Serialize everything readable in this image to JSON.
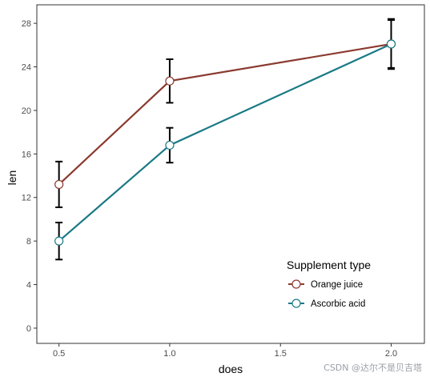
{
  "chart_data": {
    "type": "line",
    "xlabel": "does",
    "ylabel": "len",
    "x_ticks": [
      0.5,
      1.0,
      1.5,
      2.0
    ],
    "x_tick_labels": [
      "0.5",
      "1.0",
      "1.5",
      "2.0"
    ],
    "y_ticks": [
      0,
      4,
      8,
      12,
      16,
      20,
      24,
      28
    ],
    "y_tick_labels": [
      "0",
      "4",
      "8",
      "12",
      "16",
      "20",
      "24",
      "28"
    ],
    "xlim": [
      0.4,
      2.15
    ],
    "ylim": [
      -1.4,
      29.7
    ],
    "grid": false,
    "legend_title": "Supplement type",
    "legend_position": "bottom-right inside",
    "x": [
      0.5,
      1.0,
      2.0
    ],
    "series": [
      {
        "name": "Orange juice",
        "color": "#8B3A2F",
        "values": [
          13.2,
          22.7,
          26.1
        ],
        "error": [
          2.1,
          2.0,
          2.3
        ]
      },
      {
        "name": "Ascorbic acid",
        "color": "#1B7A86",
        "values": [
          8.0,
          16.8,
          26.1
        ],
        "error": [
          1.7,
          1.6,
          2.2
        ]
      }
    ]
  },
  "watermark": "CSDN @达尔不是贝吉塔"
}
